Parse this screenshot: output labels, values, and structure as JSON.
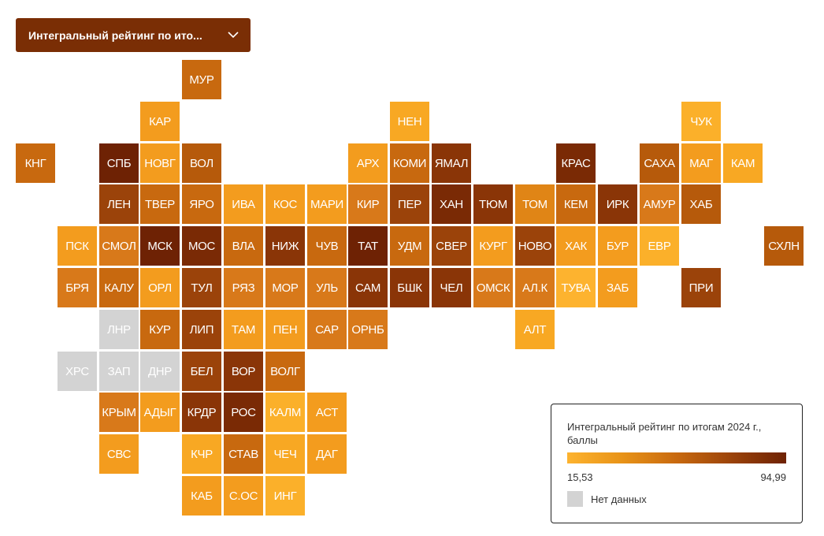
{
  "dropdown": {
    "label": "Интегральный рейтинг по ито...",
    "icon": "chevron-down-icon"
  },
  "legend": {
    "title": "Интегральный рейтинг по итогам 2024 г., баллы",
    "min_label": "15,53",
    "max_label": "94,99",
    "nodata_label": "Нет данных",
    "nodata_color": "#d3d3d3",
    "gradient": [
      "#fdb32f",
      "#6e2204"
    ]
  },
  "regions": [
    {
      "code": "МУР",
      "row": 0,
      "col": 4,
      "color": "#c8690f"
    },
    {
      "code": "КАР",
      "row": 1,
      "col": 3,
      "color": "#f39c1e"
    },
    {
      "code": "НЕН",
      "row": 1,
      "col": 9,
      "color": "#f8a823"
    },
    {
      "code": "ЧУК",
      "row": 1,
      "col": 16,
      "color": "#fbb02a"
    },
    {
      "code": "КНГ",
      "row": 2,
      "col": 0,
      "color": "#c8690f"
    },
    {
      "code": "СПБ",
      "row": 2,
      "col": 2,
      "color": "#6e2204"
    },
    {
      "code": "НОВГ",
      "row": 2,
      "col": 3,
      "color": "#f39c1e"
    },
    {
      "code": "ВОЛ",
      "row": 2,
      "col": 4,
      "color": "#b65a0b"
    },
    {
      "code": "АРХ",
      "row": 2,
      "col": 8,
      "color": "#f39c1e"
    },
    {
      "code": "КОМИ",
      "row": 2,
      "col": 9,
      "color": "#c8690f"
    },
    {
      "code": "ЯМАЛ",
      "row": 2,
      "col": 10,
      "color": "#8a3507"
    },
    {
      "code": "КРАС",
      "row": 2,
      "col": 13,
      "color": "#7a2a05"
    },
    {
      "code": "САХА",
      "row": 2,
      "col": 15,
      "color": "#b65a0b"
    },
    {
      "code": "МАГ",
      "row": 2,
      "col": 16,
      "color": "#f39c1e"
    },
    {
      "code": "КАМ",
      "row": 2,
      "col": 17,
      "color": "#f8a823"
    },
    {
      "code": "ЛЕН",
      "row": 3,
      "col": 2,
      "color": "#9b430a"
    },
    {
      "code": "ТВЕР",
      "row": 3,
      "col": 3,
      "color": "#c8690f"
    },
    {
      "code": "ЯРО",
      "row": 3,
      "col": 4,
      "color": "#c8690f"
    },
    {
      "code": "ИВА",
      "row": 3,
      "col": 5,
      "color": "#f39c1e"
    },
    {
      "code": "КОС",
      "row": 3,
      "col": 6,
      "color": "#f39c1e"
    },
    {
      "code": "МАРИ",
      "row": 3,
      "col": 7,
      "color": "#f39c1e"
    },
    {
      "code": "КИР",
      "row": 3,
      "col": 8,
      "color": "#d8791a"
    },
    {
      "code": "ПЕР",
      "row": 3,
      "col": 9,
      "color": "#9b430a"
    },
    {
      "code": "ХАН",
      "row": 3,
      "col": 10,
      "color": "#7a2a05"
    },
    {
      "code": "ТЮМ",
      "row": 3,
      "col": 11,
      "color": "#8a3507"
    },
    {
      "code": "ТОМ",
      "row": 3,
      "col": 12,
      "color": "#e08516"
    },
    {
      "code": "КЕМ",
      "row": 3,
      "col": 13,
      "color": "#c8690f"
    },
    {
      "code": "ИРК",
      "row": 3,
      "col": 14,
      "color": "#8a3507"
    },
    {
      "code": "АМУР",
      "row": 3,
      "col": 15,
      "color": "#d8791a"
    },
    {
      "code": "ХАБ",
      "row": 3,
      "col": 16,
      "color": "#b65a0b"
    },
    {
      "code": "ПСК",
      "row": 4,
      "col": 1,
      "color": "#f39c1e"
    },
    {
      "code": "СМОЛ",
      "row": 4,
      "col": 2,
      "color": "#d8791a"
    },
    {
      "code": "МСК",
      "row": 4,
      "col": 3,
      "color": "#6e2204"
    },
    {
      "code": "МОС",
      "row": 4,
      "col": 4,
      "color": "#7a2a05"
    },
    {
      "code": "ВЛА",
      "row": 4,
      "col": 5,
      "color": "#c8690f"
    },
    {
      "code": "НИЖ",
      "row": 4,
      "col": 6,
      "color": "#8a3507"
    },
    {
      "code": "ЧУВ",
      "row": 4,
      "col": 7,
      "color": "#c8690f"
    },
    {
      "code": "ТАТ",
      "row": 4,
      "col": 8,
      "color": "#6e2204"
    },
    {
      "code": "УДМ",
      "row": 4,
      "col": 9,
      "color": "#c8690f"
    },
    {
      "code": "СВЕР",
      "row": 4,
      "col": 10,
      "color": "#9b430a"
    },
    {
      "code": "КУРГ",
      "row": 4,
      "col": 11,
      "color": "#f39c1e"
    },
    {
      "code": "НОВО",
      "row": 4,
      "col": 12,
      "color": "#9b430a"
    },
    {
      "code": "ХАК",
      "row": 4,
      "col": 13,
      "color": "#f39c1e"
    },
    {
      "code": "БУР",
      "row": 4,
      "col": 14,
      "color": "#f39c1e"
    },
    {
      "code": "ЕВР",
      "row": 4,
      "col": 15,
      "color": "#fbb02a"
    },
    {
      "code": "СХЛН",
      "row": 4,
      "col": 18,
      "color": "#b65a0b"
    },
    {
      "code": "БРЯ",
      "row": 5,
      "col": 1,
      "color": "#d8791a"
    },
    {
      "code": "КАЛУ",
      "row": 5,
      "col": 2,
      "color": "#c8690f"
    },
    {
      "code": "ОРЛ",
      "row": 5,
      "col": 3,
      "color": "#f39c1e"
    },
    {
      "code": "ТУЛ",
      "row": 5,
      "col": 4,
      "color": "#9b430a"
    },
    {
      "code": "РЯЗ",
      "row": 5,
      "col": 5,
      "color": "#d8791a"
    },
    {
      "code": "МОР",
      "row": 5,
      "col": 6,
      "color": "#d8791a"
    },
    {
      "code": "УЛЬ",
      "row": 5,
      "col": 7,
      "color": "#d8791a"
    },
    {
      "code": "САМ",
      "row": 5,
      "col": 8,
      "color": "#8a3507"
    },
    {
      "code": "БШК",
      "row": 5,
      "col": 9,
      "color": "#8a3507"
    },
    {
      "code": "ЧЕЛ",
      "row": 5,
      "col": 10,
      "color": "#8a3507"
    },
    {
      "code": "ОМСК",
      "row": 5,
      "col": 11,
      "color": "#d8791a"
    },
    {
      "code": "АЛ.К",
      "row": 5,
      "col": 12,
      "color": "#d8791a"
    },
    {
      "code": "ТУВА",
      "row": 5,
      "col": 13,
      "color": "#fdb32f"
    },
    {
      "code": "ЗАБ",
      "row": 5,
      "col": 14,
      "color": "#f39c1e"
    },
    {
      "code": "ПРИ",
      "row": 5,
      "col": 16,
      "color": "#9b430a"
    },
    {
      "code": "ЛНР",
      "row": 6,
      "col": 2,
      "color": "#d3d3d3"
    },
    {
      "code": "КУР",
      "row": 6,
      "col": 3,
      "color": "#c8690f"
    },
    {
      "code": "ЛИП",
      "row": 6,
      "col": 4,
      "color": "#9b430a"
    },
    {
      "code": "ТАМ",
      "row": 6,
      "col": 5,
      "color": "#f39c1e"
    },
    {
      "code": "ПЕН",
      "row": 6,
      "col": 6,
      "color": "#f39c1e"
    },
    {
      "code": "САР",
      "row": 6,
      "col": 7,
      "color": "#d8791a"
    },
    {
      "code": "ОРНБ",
      "row": 6,
      "col": 8,
      "color": "#d8791a"
    },
    {
      "code": "АЛТ",
      "row": 6,
      "col": 12,
      "color": "#f8a823"
    },
    {
      "code": "ХРС",
      "row": 7,
      "col": 1,
      "color": "#d3d3d3"
    },
    {
      "code": "ЗАП",
      "row": 7,
      "col": 2,
      "color": "#d3d3d3"
    },
    {
      "code": "ДНР",
      "row": 7,
      "col": 3,
      "color": "#d3d3d3"
    },
    {
      "code": "БЕЛ",
      "row": 7,
      "col": 4,
      "color": "#9b430a"
    },
    {
      "code": "ВОР",
      "row": 7,
      "col": 5,
      "color": "#8a3507"
    },
    {
      "code": "ВОЛГ",
      "row": 7,
      "col": 6,
      "color": "#c8690f"
    },
    {
      "code": "КРЫМ",
      "row": 8,
      "col": 2,
      "color": "#d8791a"
    },
    {
      "code": "АДЫГ",
      "row": 8,
      "col": 3,
      "color": "#f39c1e"
    },
    {
      "code": "КРДР",
      "row": 8,
      "col": 4,
      "color": "#8a3507"
    },
    {
      "code": "РОС",
      "row": 8,
      "col": 5,
      "color": "#7a2a05"
    },
    {
      "code": "КАЛМ",
      "row": 8,
      "col": 6,
      "color": "#fbb02a"
    },
    {
      "code": "АСТ",
      "row": 8,
      "col": 7,
      "color": "#f39c1e"
    },
    {
      "code": "СВС",
      "row": 9,
      "col": 2,
      "color": "#f39c1e"
    },
    {
      "code": "КЧР",
      "row": 9,
      "col": 4,
      "color": "#f8a823"
    },
    {
      "code": "СТАВ",
      "row": 9,
      "col": 5,
      "color": "#c8690f"
    },
    {
      "code": "ЧЕЧ",
      "row": 9,
      "col": 6,
      "color": "#f8a823"
    },
    {
      "code": "ДАГ",
      "row": 9,
      "col": 7,
      "color": "#f39c1e"
    },
    {
      "code": "КАБ",
      "row": 10,
      "col": 4,
      "color": "#f39c1e"
    },
    {
      "code": "С.ОС",
      "row": 10,
      "col": 5,
      "color": "#f39c1e"
    },
    {
      "code": "ИНГ",
      "row": 10,
      "col": 6,
      "color": "#fbb02a"
    }
  ]
}
